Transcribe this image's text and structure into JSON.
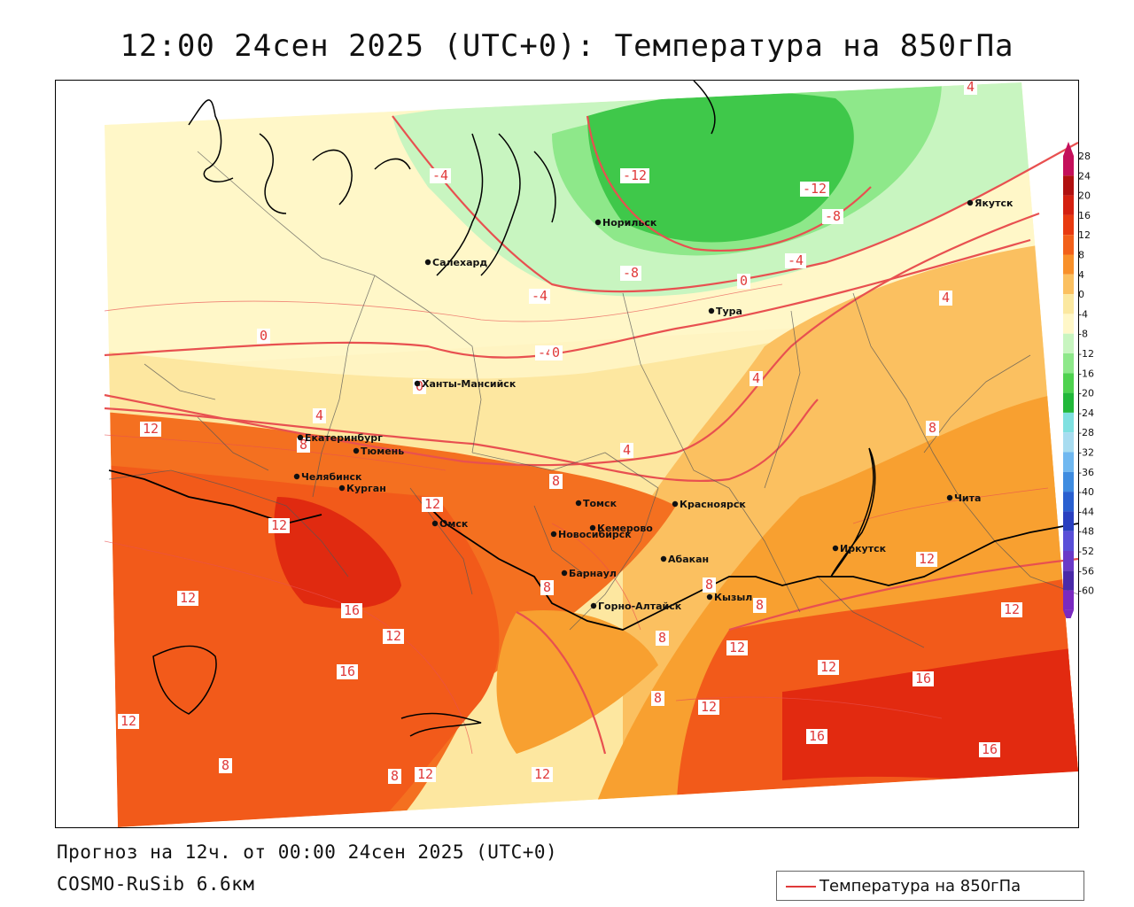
{
  "title": "12:00 24сен 2025 (UTC+0): Температура на 850гПа",
  "footer": {
    "forecast": "Прогноз на 12ч. от 00:00 24сен 2025 (UTC+0)",
    "model": "COSMO-RuSib 6.6км"
  },
  "legend": {
    "label": "Температура на 850гПа",
    "line_color": "#e03a3a"
  },
  "colorbar": {
    "ticks": [
      "28",
      "24",
      "20",
      "16",
      "12",
      "8",
      "4",
      "0",
      "-4",
      "-8",
      "-12",
      "-16",
      "-20",
      "-24",
      "-28",
      "-32",
      "-36",
      "-40",
      "-44",
      "-48",
      "-52",
      "-56",
      "-60"
    ],
    "colors": [
      "#c40f5a",
      "#b01010",
      "#d42010",
      "#e83a10",
      "#f2601a",
      "#f8902a",
      "#fbc060",
      "#fbe8a0",
      "#fff7c8",
      "#c8f5c0",
      "#8ee88a",
      "#4fd24f",
      "#22b83a",
      "#7fe0e0",
      "#a8dcf0",
      "#70b8f0",
      "#3f8ce0",
      "#2a60d0",
      "#2a40c0",
      "#5a50d8",
      "#6a3ac8",
      "#4a2aa8",
      "#7a2ac0"
    ]
  },
  "cities": [
    {
      "name": "Норильск"
    },
    {
      "name": "Якутск"
    },
    {
      "name": "Салехард"
    },
    {
      "name": "Тура"
    },
    {
      "name": "Ханты-Мансийск"
    },
    {
      "name": "Екатеринбург"
    },
    {
      "name": "Тюмень"
    },
    {
      "name": "Челябинск"
    },
    {
      "name": "Курган"
    },
    {
      "name": "Омск"
    },
    {
      "name": "Новосибирск"
    },
    {
      "name": "Томск"
    },
    {
      "name": "Кемерово"
    },
    {
      "name": "Красноярск"
    },
    {
      "name": "Барнаул"
    },
    {
      "name": "Абакан"
    },
    {
      "name": "Горно-Алтайск"
    },
    {
      "name": "Кызыл"
    },
    {
      "name": "Иркутск"
    },
    {
      "name": "Чита"
    }
  ],
  "isotherm_labels": [
    "-4",
    "-12",
    "-12",
    "-8",
    "-4",
    "-8",
    "-4",
    "0",
    "-4",
    "0",
    "0",
    "0",
    "4",
    "4",
    "4",
    "4",
    "4",
    "8",
    "12",
    "12",
    "8",
    "12",
    "16",
    "12",
    "16",
    "12",
    "8",
    "8",
    "8",
    "8",
    "12",
    "8",
    "12",
    "12",
    "16",
    "16",
    "8",
    "12",
    "12",
    "16",
    "12",
    "8",
    "8",
    "12",
    "12"
  ]
}
